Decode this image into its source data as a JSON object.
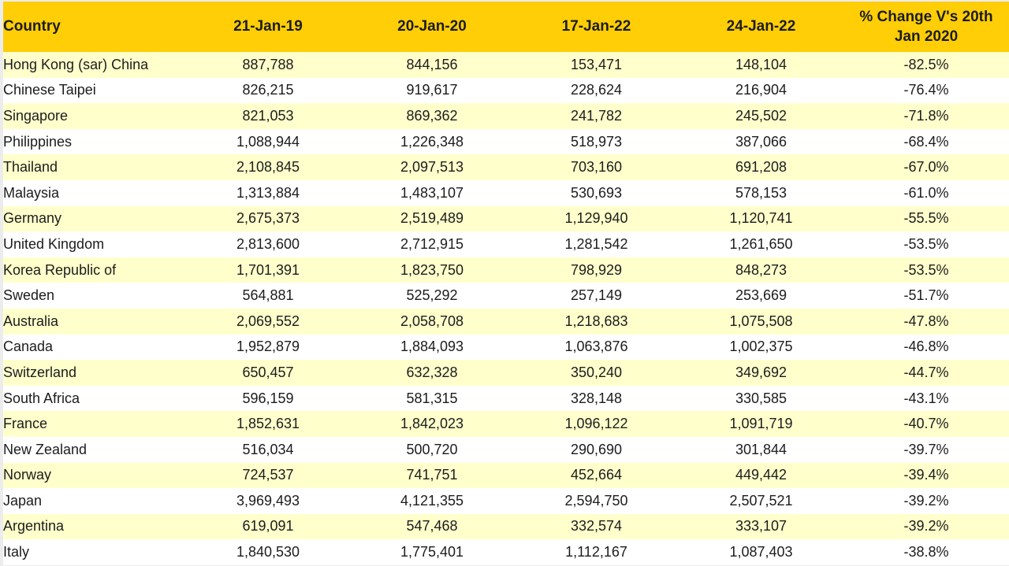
{
  "colors": {
    "header_bg": "#ffce06",
    "stripe_bg": "#ffffcc",
    "row_bg": "#ffffff",
    "text": "#1c1c1c",
    "frame_bg": "#ececec"
  },
  "chart_data": {
    "type": "table",
    "columns": [
      "Country",
      "21-Jan-19",
      "20-Jan-20",
      "17-Jan-22",
      "24-Jan-22",
      "% Change V's 20th Jan 2020"
    ],
    "pct_header_lines": [
      "% Change V's 20th",
      "Jan 2020"
    ],
    "rows": [
      {
        "country": "Hong Kong (sar) China",
        "c1": "887,788",
        "c2": "844,156",
        "c3": "153,471",
        "c4": "148,104",
        "pct": "-82.5%"
      },
      {
        "country": "Chinese Taipei",
        "c1": "826,215",
        "c2": "919,617",
        "c3": "228,624",
        "c4": "216,904",
        "pct": "-76.4%"
      },
      {
        "country": "Singapore",
        "c1": "821,053",
        "c2": "869,362",
        "c3": "241,782",
        "c4": "245,502",
        "pct": "-71.8%"
      },
      {
        "country": "Philippines",
        "c1": "1,088,944",
        "c2": "1,226,348",
        "c3": "518,973",
        "c4": "387,066",
        "pct": "-68.4%"
      },
      {
        "country": "Thailand",
        "c1": "2,108,845",
        "c2": "2,097,513",
        "c3": "703,160",
        "c4": "691,208",
        "pct": "-67.0%"
      },
      {
        "country": "Malaysia",
        "c1": "1,313,884",
        "c2": "1,483,107",
        "c3": "530,693",
        "c4": "578,153",
        "pct": "-61.0%"
      },
      {
        "country": "Germany",
        "c1": "2,675,373",
        "c2": "2,519,489",
        "c3": "1,129,940",
        "c4": "1,120,741",
        "pct": "-55.5%"
      },
      {
        "country": "United Kingdom",
        "c1": "2,813,600",
        "c2": "2,712,915",
        "c3": "1,281,542",
        "c4": "1,261,650",
        "pct": "-53.5%"
      },
      {
        "country": "Korea Republic of",
        "c1": "1,701,391",
        "c2": "1,823,750",
        "c3": "798,929",
        "c4": "848,273",
        "pct": "-53.5%"
      },
      {
        "country": "Sweden",
        "c1": "564,881",
        "c2": "525,292",
        "c3": "257,149",
        "c4": "253,669",
        "pct": "-51.7%"
      },
      {
        "country": "Australia",
        "c1": "2,069,552",
        "c2": "2,058,708",
        "c3": "1,218,683",
        "c4": "1,075,508",
        "pct": "-47.8%"
      },
      {
        "country": "Canada",
        "c1": "1,952,879",
        "c2": "1,884,093",
        "c3": "1,063,876",
        "c4": "1,002,375",
        "pct": "-46.8%"
      },
      {
        "country": "Switzerland",
        "c1": "650,457",
        "c2": "632,328",
        "c3": "350,240",
        "c4": "349,692",
        "pct": "-44.7%"
      },
      {
        "country": "South Africa",
        "c1": "596,159",
        "c2": "581,315",
        "c3": "328,148",
        "c4": "330,585",
        "pct": "-43.1%"
      },
      {
        "country": "France",
        "c1": "1,852,631",
        "c2": "1,842,023",
        "c3": "1,096,122",
        "c4": "1,091,719",
        "pct": "-40.7%"
      },
      {
        "country": "New Zealand",
        "c1": "516,034",
        "c2": "500,720",
        "c3": "290,690",
        "c4": "301,844",
        "pct": "-39.7%"
      },
      {
        "country": "Norway",
        "c1": "724,537",
        "c2": "741,751",
        "c3": "452,664",
        "c4": "449,442",
        "pct": "-39.4%"
      },
      {
        "country": "Japan",
        "c1": "3,969,493",
        "c2": "4,121,355",
        "c3": "2,594,750",
        "c4": "2,507,521",
        "pct": "-39.2%"
      },
      {
        "country": "Argentina",
        "c1": "619,091",
        "c2": "547,468",
        "c3": "332,574",
        "c4": "333,107",
        "pct": "-39.2%"
      },
      {
        "country": "Italy",
        "c1": "1,840,530",
        "c2": "1,775,401",
        "c3": "1,112,167",
        "c4": "1,087,403",
        "pct": "-38.8%"
      }
    ]
  }
}
